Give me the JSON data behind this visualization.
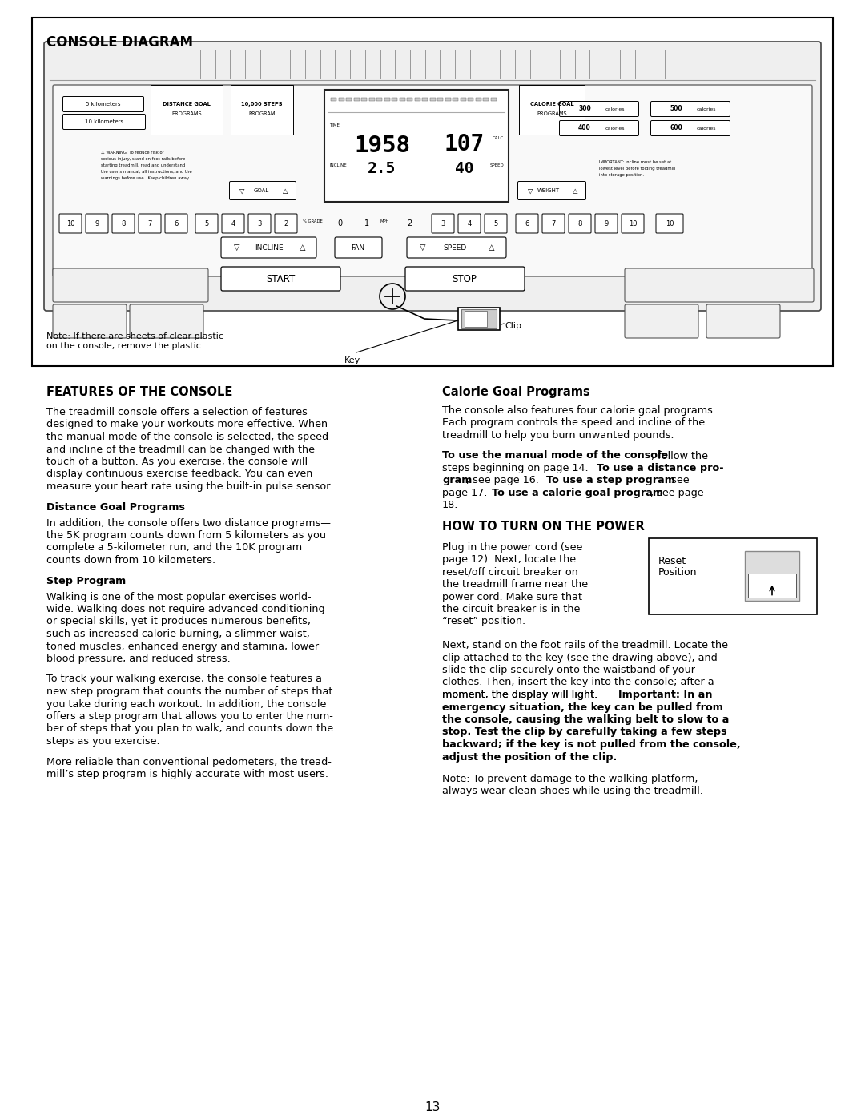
{
  "page_bg": "#ffffff",
  "page_number": "13",
  "console_diagram_title": "CONSOLE DIAGRAM",
  "note_text_1": "Note: If there are sheets of clear plastic",
  "note_text_2": "on the console, remove the plastic.",
  "key_label": "Key",
  "clip_label": "Clip",
  "section1_title": "FEATURES OF THE CONSOLE",
  "sub1_title": "Distance Goal Programs",
  "sub2_title": "Step Program",
  "section2_title": "Calorie Goal Programs",
  "section3_title": "HOW TO TURN ON THE POWER",
  "reset_label1": "Reset",
  "reset_label2": "Position",
  "body1": [
    "The treadmill console offers a selection of features",
    "designed to make your workouts more effective. When",
    "the manual mode of the console is selected, the speed",
    "and incline of the treadmill can be changed with the",
    "touch of a button. As you exercise, the console will",
    "display continuous exercise feedback. You can even",
    "measure your heart rate using the built-in pulse sensor."
  ],
  "body2": [
    "In addition, the console offers two distance programs—",
    "the 5K program counts down from 5 kilometers as you",
    "complete a 5-kilometer run, and the 10K program",
    "counts down from 10 kilometers."
  ],
  "body3": [
    "Walking is one of the most popular exercises world-",
    "wide. Walking does not require advanced conditioning",
    "or special skills, yet it produces numerous benefits,",
    "such as increased calorie burning, a slimmer waist,",
    "toned muscles, enhanced energy and stamina, lower",
    "blood pressure, and reduced stress."
  ],
  "body4": [
    "To track your walking exercise, the console features a",
    "new step program that counts the number of steps that",
    "you take during each workout. In addition, the console",
    "offers a step program that allows you to enter the num-",
    "ber of steps that you plan to walk, and counts down the",
    "steps as you exercise."
  ],
  "body5": [
    "More reliable than conventional pedometers, the tread-",
    "mill’s step program is highly accurate with most users."
  ],
  "rbody1": [
    "The console also features four calorie goal programs.",
    "Each program controls the speed and incline of the",
    "treadmill to help you burn unwanted pounds."
  ],
  "rbody3": [
    "Plug in the power cord (see",
    "page 12). Next, locate the",
    "reset/off circuit breaker on",
    "the treadmill frame near the",
    "power cord. Make sure that",
    "the circuit breaker is in the",
    "“reset” position."
  ],
  "rbody4": [
    "Next, stand on the foot rails of the treadmill. Locate the",
    "clip attached to the key (see the drawing above), and",
    "slide the clip securely onto the waistband of your",
    "clothes. Then, insert the key into the console; after a",
    "moment, the display will light."
  ],
  "rbody5": [
    "emergency situation, the key can be pulled from",
    "the console, causing the walking belt to slow to a",
    "stop. Test the clip by carefully taking a few steps",
    "backward; if the key is not pulled from the console,",
    "adjust the position of the clip."
  ],
  "rbody6": [
    "Note: To prevent damage to the walking platform,",
    "always wear clean shoes while using the treadmill."
  ]
}
